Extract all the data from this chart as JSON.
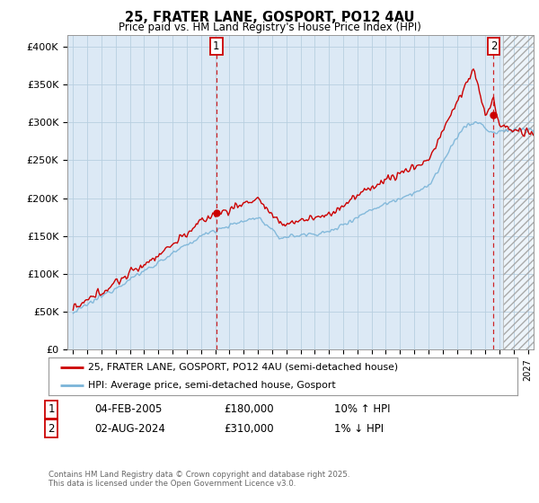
{
  "title": "25, FRATER LANE, GOSPORT, PO12 4AU",
  "subtitle": "Price paid vs. HM Land Registry's House Price Index (HPI)",
  "ylabel_ticks": [
    "£0",
    "£50K",
    "£100K",
    "£150K",
    "£200K",
    "£250K",
    "£300K",
    "£350K",
    "£400K"
  ],
  "ylabel_values": [
    0,
    50000,
    100000,
    150000,
    200000,
    250000,
    300000,
    350000,
    400000
  ],
  "ylim": [
    0,
    415000
  ],
  "xlim_start": 1994.6,
  "xlim_end": 2027.4,
  "hpi_color": "#7ab4d8",
  "price_color": "#cc0000",
  "plot_bg_color": "#dce9f5",
  "marker1_date": 2005.08,
  "marker2_date": 2024.58,
  "marker1_price": 180000,
  "marker2_price": 310000,
  "annotation1": "1",
  "annotation2": "2",
  "legend_line1": "25, FRATER LANE, GOSPORT, PO12 4AU (semi-detached house)",
  "legend_line2": "HPI: Average price, semi-detached house, Gosport",
  "note1_num": "1",
  "note1_date": "04-FEB-2005",
  "note1_price": "£180,000",
  "note1_hpi": "10% ↑ HPI",
  "note2_num": "2",
  "note2_date": "02-AUG-2024",
  "note2_price": "£310,000",
  "note2_hpi": "1% ↓ HPI",
  "copyright": "Contains HM Land Registry data © Crown copyright and database right 2025.\nThis data is licensed under the Open Government Licence v3.0.",
  "bg_color": "#ffffff",
  "grid_color": "#b8cfe0",
  "hatch_start": 2025.25
}
